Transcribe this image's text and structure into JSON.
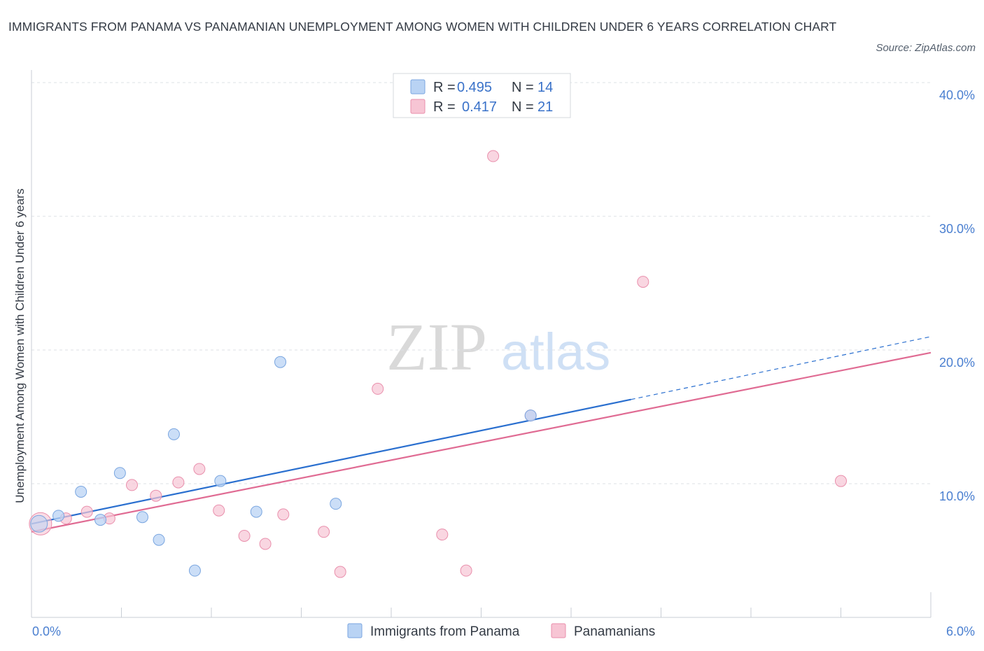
{
  "title": "IMMIGRANTS FROM PANAMA VS PANAMANIAN UNEMPLOYMENT AMONG WOMEN WITH CHILDREN UNDER 6 YEARS CORRELATION CHART",
  "source": "Source: ZipAtlas.com",
  "watermark": {
    "zip": "ZIP",
    "atlas": "atlas"
  },
  "colors": {
    "blue_fill": "#b9d3f4",
    "blue_stroke": "#7aa6e0",
    "blue_line": "#2a6fcf",
    "pink_fill": "#f7c5d4",
    "pink_stroke": "#e98fac",
    "pink_line": "#e06b93",
    "grid": "#dde1e6",
    "tick_text": "#4a7fd0"
  },
  "legend": {
    "rows": [
      {
        "r_label": "R = ",
        "r_value": "0.495",
        "n_label": "N = ",
        "n_value": "14",
        "color": "blue"
      },
      {
        "r_label": "R = ",
        "r_value": "0.417",
        "n_label": "N = ",
        "n_value": "21",
        "color": "pink"
      }
    ]
  },
  "bottom_legend": [
    {
      "label": "Immigrants from Panama",
      "color": "blue"
    },
    {
      "label": "Panamanians",
      "color": "pink"
    }
  ],
  "chart_data": {
    "type": "scatter",
    "xlabel": "",
    "ylabel": "Unemployment Among Women with Children Under 6 years",
    "xlim": [
      0,
      6
    ],
    "ylim": [
      0,
      40
    ],
    "x_tick_labels": [
      "0.0%",
      "6.0%"
    ],
    "y_ticks": [
      10,
      20,
      30,
      40
    ],
    "y_tick_labels": [
      "10.0%",
      "20.0%",
      "30.0%",
      "40.0%"
    ],
    "grid": "horizontal dashed",
    "legend_position": "top-center",
    "series": [
      {
        "name": "Immigrants from Panama",
        "color": "blue",
        "r": 0.495,
        "n": 14,
        "points": [
          [
            0.05,
            7.0
          ],
          [
            0.18,
            7.6
          ],
          [
            0.33,
            9.4
          ],
          [
            0.46,
            7.3
          ],
          [
            0.59,
            10.8
          ],
          [
            0.74,
            7.5
          ],
          [
            0.85,
            5.8
          ],
          [
            0.95,
            13.7
          ],
          [
            1.09,
            3.5
          ],
          [
            1.26,
            10.2
          ],
          [
            1.5,
            7.9
          ],
          [
            1.66,
            19.1
          ],
          [
            2.03,
            8.5
          ],
          [
            3.33,
            15.1
          ]
        ],
        "trend": {
          "x0": 0,
          "y0": 7.0,
          "x1": 4.0,
          "y1": 16.3,
          "dashed_to_x": 6.0,
          "dashed_to_y": 21.0
        }
      },
      {
        "name": "Panamanians",
        "color": "pink",
        "r": 0.417,
        "n": 21,
        "points": [
          [
            0.06,
            7.0
          ],
          [
            0.23,
            7.4
          ],
          [
            0.37,
            7.9
          ],
          [
            0.52,
            7.4
          ],
          [
            0.67,
            9.9
          ],
          [
            0.83,
            9.1
          ],
          [
            0.98,
            10.1
          ],
          [
            1.12,
            11.1
          ],
          [
            1.25,
            8.0
          ],
          [
            1.42,
            6.1
          ],
          [
            1.56,
            5.5
          ],
          [
            1.68,
            7.7
          ],
          [
            1.95,
            6.4
          ],
          [
            2.06,
            3.4
          ],
          [
            2.31,
            17.1
          ],
          [
            2.74,
            6.2
          ],
          [
            2.9,
            3.5
          ],
          [
            3.08,
            34.5
          ],
          [
            3.33,
            15.1
          ],
          [
            4.08,
            25.1
          ],
          [
            5.4,
            10.2
          ]
        ],
        "trend": {
          "x0": 0,
          "y0": 6.4,
          "x1": 6.0,
          "y1": 19.8
        }
      }
    ]
  }
}
